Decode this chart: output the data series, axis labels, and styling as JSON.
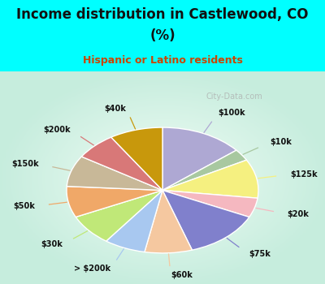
{
  "title_line1": "Income distribution in Castlewood, CO",
  "title_line2": "(%)",
  "subtitle": "Hispanic or Latino residents",
  "title_color": "#111111",
  "subtitle_color": "#cc4400",
  "background_color": "#00ffff",
  "watermark": "City-Data.com",
  "labels": [
    "$100k",
    "$10k",
    "$125k",
    "$20k",
    "$75k",
    "$60k",
    "> $200k",
    "$30k",
    "$50k",
    "$150k",
    "$200k",
    "$40k"
  ],
  "values": [
    14,
    3,
    10,
    5,
    13,
    8,
    7,
    8,
    8,
    8,
    7,
    9
  ],
  "colors": [
    "#aea8d3",
    "#a8c8a0",
    "#f5f080",
    "#f5b8c0",
    "#8080cc",
    "#f5c8a0",
    "#a8c8f0",
    "#c0e878",
    "#f0a868",
    "#c8b898",
    "#d87878",
    "#c8980c"
  ]
}
